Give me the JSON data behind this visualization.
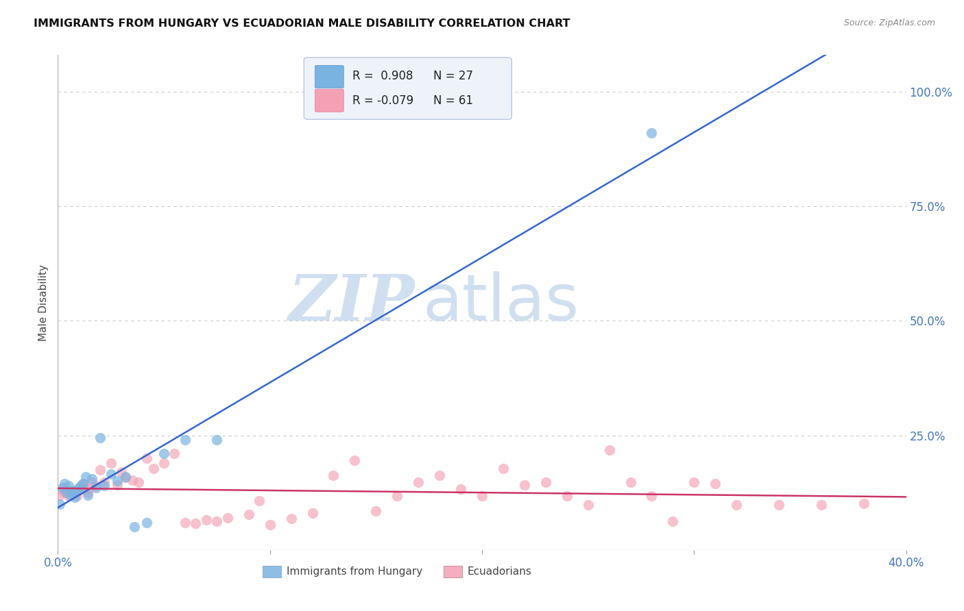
{
  "title": "IMMIGRANTS FROM HUNGARY VS ECUADORIAN MALE DISABILITY CORRELATION CHART",
  "source": "Source: ZipAtlas.com",
  "ylabel": "Male Disability",
  "xlim": [
    0.0,
    0.4
  ],
  "ylim": [
    0.0,
    1.08
  ],
  "xticks": [
    0.0,
    0.1,
    0.2,
    0.3,
    0.4
  ],
  "xticklabels": [
    "0.0%",
    "",
    "",
    "",
    "40.0%"
  ],
  "ytick_positions": [
    0.25,
    0.5,
    0.75,
    1.0
  ],
  "ytick_labels": [
    "25.0%",
    "50.0%",
    "75.0%",
    "100.0%"
  ],
  "blue_R": 0.908,
  "blue_N": 27,
  "pink_R": -0.079,
  "pink_N": 61,
  "blue_color": "#7ab3e0",
  "pink_color": "#f4a0b5",
  "blue_line_color": "#3366cc",
  "pink_line_color": "#cc3366",
  "watermark_zip": "ZIP",
  "watermark_atlas": "atlas",
  "watermark_color": "#d0dff0",
  "legend_label_blue": "Immigrants from Hungary",
  "legend_label_pink": "Ecuadorians",
  "blue_x": [
    0.001,
    0.002,
    0.003,
    0.004,
    0.005,
    0.006,
    0.007,
    0.008,
    0.009,
    0.01,
    0.011,
    0.012,
    0.013,
    0.014,
    0.016,
    0.018,
    0.02,
    0.022,
    0.025,
    0.028,
    0.032,
    0.036,
    0.042,
    0.05,
    0.06,
    0.075,
    0.28
  ],
  "blue_y": [
    0.1,
    0.135,
    0.145,
    0.125,
    0.14,
    0.12,
    0.13,
    0.115,
    0.13,
    0.135,
    0.14,
    0.145,
    0.16,
    0.12,
    0.155,
    0.135,
    0.245,
    0.14,
    0.165,
    0.15,
    0.16,
    0.05,
    0.06,
    0.21,
    0.24,
    0.24,
    0.91
  ],
  "pink_x": [
    0.001,
    0.002,
    0.003,
    0.004,
    0.005,
    0.006,
    0.007,
    0.008,
    0.009,
    0.01,
    0.012,
    0.013,
    0.014,
    0.015,
    0.016,
    0.018,
    0.02,
    0.022,
    0.025,
    0.028,
    0.03,
    0.032,
    0.035,
    0.038,
    0.042,
    0.045,
    0.05,
    0.055,
    0.06,
    0.065,
    0.07,
    0.075,
    0.08,
    0.09,
    0.095,
    0.1,
    0.11,
    0.12,
    0.13,
    0.14,
    0.15,
    0.16,
    0.17,
    0.18,
    0.19,
    0.2,
    0.21,
    0.22,
    0.23,
    0.24,
    0.25,
    0.26,
    0.27,
    0.28,
    0.29,
    0.3,
    0.31,
    0.32,
    0.34,
    0.36,
    0.38
  ],
  "pink_y": [
    0.12,
    0.13,
    0.125,
    0.13,
    0.118,
    0.128,
    0.122,
    0.125,
    0.118,
    0.13,
    0.145,
    0.132,
    0.125,
    0.135,
    0.148,
    0.14,
    0.175,
    0.148,
    0.19,
    0.142,
    0.17,
    0.158,
    0.152,
    0.148,
    0.2,
    0.178,
    0.19,
    0.21,
    0.06,
    0.058,
    0.065,
    0.062,
    0.07,
    0.078,
    0.108,
    0.055,
    0.068,
    0.08,
    0.162,
    0.195,
    0.085,
    0.118,
    0.148,
    0.162,
    0.132,
    0.118,
    0.178,
    0.142,
    0.148,
    0.118,
    0.098,
    0.218,
    0.148,
    0.118,
    0.062,
    0.148,
    0.145,
    0.098,
    0.098,
    0.098,
    0.102
  ]
}
